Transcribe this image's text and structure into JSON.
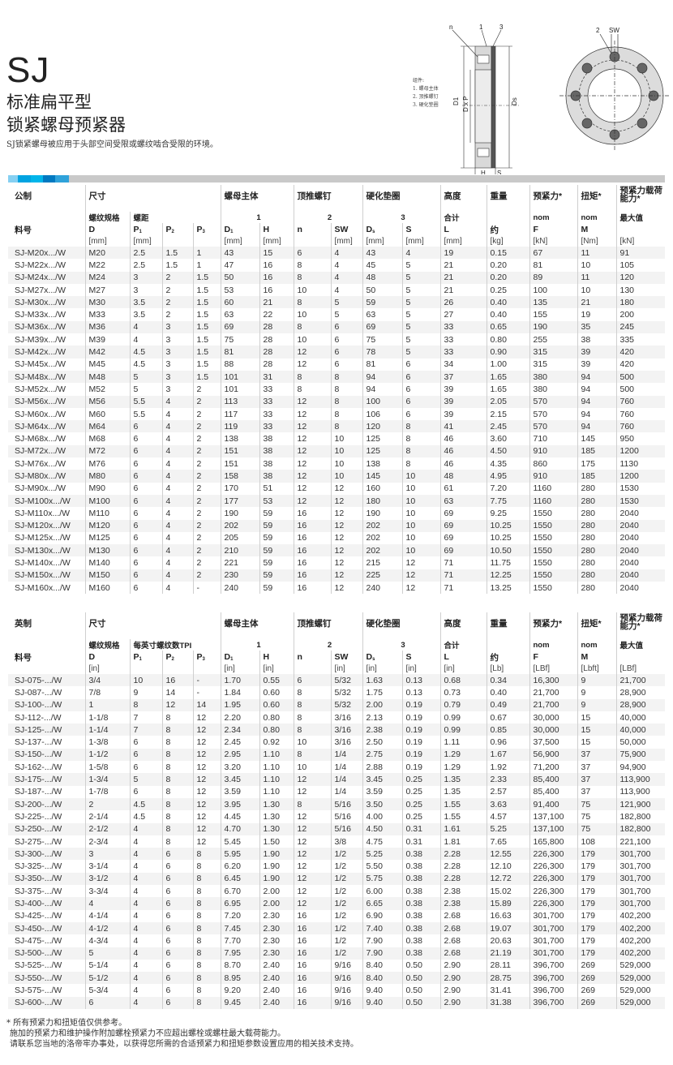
{
  "header": {
    "title": "SJ",
    "subtitle1": "标准扁平型",
    "subtitle2": "锁紧螺母预紧器",
    "description": "SJ锁紧螺母被应用于头部空间受限或螺纹啮合受限的环境。"
  },
  "diagram": {
    "legend_title": "组件:",
    "legend_items": [
      "1. 螺母主体",
      "2. 顶推螺钉",
      "3. 硬化垫圈"
    ],
    "labels": {
      "n": "n",
      "one": "1",
      "three": "3",
      "two": "2",
      "sw": "SW",
      "d1": "D1",
      "dxp": "D x P",
      "ds": "Ds",
      "h": "H",
      "s": "S",
      "l": "L"
    }
  },
  "colors": {
    "bar_segments": [
      "#86d0f2",
      "#00a3e1",
      "#00b5ea",
      "#0079c1",
      "#2fa2da"
    ],
    "bar_rest": "#c9c9c9",
    "row_alt": "#f3f3f3"
  },
  "metric": {
    "h1": [
      "公制",
      "尺寸",
      "螺母主体",
      "顶推螺钉",
      "硬化垫圈",
      "高度",
      "重量",
      "预紧力*",
      "扭矩*",
      "预紧力载荷能力*"
    ],
    "h2": [
      "螺纹规格",
      "螺距",
      "1",
      "2",
      "3",
      "合计",
      "nom",
      "nom",
      "最大值"
    ],
    "h3": [
      "料号",
      "D",
      "P|1",
      "P|2",
      "P|3",
      "D|1",
      "H",
      "n",
      "SW",
      "D|s",
      "S",
      "L",
      "约",
      "F",
      "M",
      ""
    ],
    "h4": [
      "",
      "[mm]",
      "[mm]",
      "",
      "",
      "[mm]",
      "[mm]",
      "",
      "[mm]",
      "[mm]",
      "[mm]",
      "[mm]",
      "[kg]",
      "[kN]",
      "[Nm]",
      "[kN]"
    ],
    "rows": [
      [
        "SJ-M20x.../W",
        "M20",
        "2.5",
        "1.5",
        "1",
        "43",
        "15",
        "6",
        "4",
        "43",
        "4",
        "19",
        "0.15",
        "67",
        "11",
        "91"
      ],
      [
        "SJ-M22x.../W",
        "M22",
        "2.5",
        "1.5",
        "1",
        "47",
        "16",
        "8",
        "4",
        "45",
        "5",
        "21",
        "0.20",
        "81",
        "10",
        "105"
      ],
      [
        "SJ-M24x.../W",
        "M24",
        "3",
        "2",
        "1.5",
        "50",
        "16",
        "8",
        "4",
        "48",
        "5",
        "21",
        "0.20",
        "89",
        "11",
        "120"
      ],
      [
        "SJ-M27x.../W",
        "M27",
        "3",
        "2",
        "1.5",
        "53",
        "16",
        "10",
        "4",
        "50",
        "5",
        "21",
        "0.25",
        "100",
        "10",
        "130"
      ],
      [
        "SJ-M30x.../W",
        "M30",
        "3.5",
        "2",
        "1.5",
        "60",
        "21",
        "8",
        "5",
        "59",
        "5",
        "26",
        "0.40",
        "135",
        "21",
        "180"
      ],
      [
        "SJ-M33x.../W",
        "M33",
        "3.5",
        "2",
        "1.5",
        "63",
        "22",
        "10",
        "5",
        "63",
        "5",
        "27",
        "0.40",
        "155",
        "19",
        "200"
      ],
      [
        "SJ-M36x.../W",
        "M36",
        "4",
        "3",
        "1.5",
        "69",
        "28",
        "8",
        "6",
        "69",
        "5",
        "33",
        "0.65",
        "190",
        "35",
        "245"
      ],
      [
        "SJ-M39x.../W",
        "M39",
        "4",
        "3",
        "1.5",
        "75",
        "28",
        "10",
        "6",
        "75",
        "5",
        "33",
        "0.80",
        "255",
        "38",
        "335"
      ],
      [
        "SJ-M42x.../W",
        "M42",
        "4.5",
        "3",
        "1.5",
        "81",
        "28",
        "12",
        "6",
        "78",
        "5",
        "33",
        "0.90",
        "315",
        "39",
        "420"
      ],
      [
        "SJ-M45x.../W",
        "M45",
        "4.5",
        "3",
        "1.5",
        "88",
        "28",
        "12",
        "6",
        "81",
        "6",
        "34",
        "1.00",
        "315",
        "39",
        "420"
      ],
      [
        "SJ-M48x.../W",
        "M48",
        "5",
        "3",
        "1.5",
        "101",
        "31",
        "8",
        "8",
        "94",
        "6",
        "37",
        "1.65",
        "380",
        "94",
        "500"
      ],
      [
        "SJ-M52x.../W",
        "M52",
        "5",
        "3",
        "2",
        "101",
        "33",
        "8",
        "8",
        "94",
        "6",
        "39",
        "1.65",
        "380",
        "94",
        "500"
      ],
      [
        "SJ-M56x.../W",
        "M56",
        "5.5",
        "4",
        "2",
        "113",
        "33",
        "12",
        "8",
        "100",
        "6",
        "39",
        "2.05",
        "570",
        "94",
        "760"
      ],
      [
        "SJ-M60x.../W",
        "M60",
        "5.5",
        "4",
        "2",
        "117",
        "33",
        "12",
        "8",
        "106",
        "6",
        "39",
        "2.15",
        "570",
        "94",
        "760"
      ],
      [
        "SJ-M64x.../W",
        "M64",
        "6",
        "4",
        "2",
        "119",
        "33",
        "12",
        "8",
        "120",
        "8",
        "41",
        "2.45",
        "570",
        "94",
        "760"
      ],
      [
        "SJ-M68x.../W",
        "M68",
        "6",
        "4",
        "2",
        "138",
        "38",
        "12",
        "10",
        "125",
        "8",
        "46",
        "3.60",
        "710",
        "145",
        "950"
      ],
      [
        "SJ-M72x.../W",
        "M72",
        "6",
        "4",
        "2",
        "151",
        "38",
        "12",
        "10",
        "125",
        "8",
        "46",
        "4.50",
        "910",
        "185",
        "1200"
      ],
      [
        "SJ-M76x.../W",
        "M76",
        "6",
        "4",
        "2",
        "151",
        "38",
        "12",
        "10",
        "138",
        "8",
        "46",
        "4.35",
        "860",
        "175",
        "1130"
      ],
      [
        "SJ-M80x.../W",
        "M80",
        "6",
        "4",
        "2",
        "158",
        "38",
        "12",
        "10",
        "145",
        "10",
        "48",
        "4.95",
        "910",
        "185",
        "1200"
      ],
      [
        "SJ-M90x.../W",
        "M90",
        "6",
        "4",
        "2",
        "170",
        "51",
        "12",
        "12",
        "160",
        "10",
        "61",
        "7.20",
        "1160",
        "280",
        "1530"
      ],
      [
        "SJ-M100x.../W",
        "M100",
        "6",
        "4",
        "2",
        "177",
        "53",
        "12",
        "12",
        "180",
        "10",
        "63",
        "7.75",
        "1160",
        "280",
        "1530"
      ],
      [
        "SJ-M110x.../W",
        "M110",
        "6",
        "4",
        "2",
        "190",
        "59",
        "16",
        "12",
        "190",
        "10",
        "69",
        "9.25",
        "1550",
        "280",
        "2040"
      ],
      [
        "SJ-M120x.../W",
        "M120",
        "6",
        "4",
        "2",
        "202",
        "59",
        "16",
        "12",
        "202",
        "10",
        "69",
        "10.25",
        "1550",
        "280",
        "2040"
      ],
      [
        "SJ-M125x.../W",
        "M125",
        "6",
        "4",
        "2",
        "205",
        "59",
        "16",
        "12",
        "202",
        "10",
        "69",
        "10.25",
        "1550",
        "280",
        "2040"
      ],
      [
        "SJ-M130x.../W",
        "M130",
        "6",
        "4",
        "2",
        "210",
        "59",
        "16",
        "12",
        "202",
        "10",
        "69",
        "10.50",
        "1550",
        "280",
        "2040"
      ],
      [
        "SJ-M140x.../W",
        "M140",
        "6",
        "4",
        "2",
        "221",
        "59",
        "16",
        "12",
        "215",
        "12",
        "71",
        "11.75",
        "1550",
        "280",
        "2040"
      ],
      [
        "SJ-M150x.../W",
        "M150",
        "6",
        "4",
        "2",
        "230",
        "59",
        "16",
        "12",
        "225",
        "12",
        "71",
        "12.25",
        "1550",
        "280",
        "2040"
      ],
      [
        "SJ-M160x.../W",
        "M160",
        "6",
        "4",
        "-",
        "240",
        "59",
        "16",
        "12",
        "240",
        "12",
        "71",
        "13.25",
        "1550",
        "280",
        "2040"
      ]
    ]
  },
  "imperial": {
    "h1": [
      "英制",
      "尺寸",
      "螺母主体",
      "顶推螺钉",
      "硬化垫圈",
      "高度",
      "重量",
      "预紧力*",
      "扭矩*",
      "预紧力载荷能力*"
    ],
    "h2": [
      "螺纹规格",
      "每英寸螺纹数TPI",
      "1",
      "2",
      "3",
      "合计",
      "nom",
      "nom",
      "最大值"
    ],
    "h3": [
      "料号",
      "D",
      "P|1",
      "P|2",
      "P|3",
      "D|1",
      "H",
      "n",
      "SW",
      "D|s",
      "S",
      "L",
      "约",
      "F",
      "M",
      ""
    ],
    "h4": [
      "",
      "[in]",
      "",
      "",
      "",
      "[in]",
      "[in]",
      "",
      "[in]",
      "[in]",
      "[in]",
      "[in]",
      "[Lb]",
      "[LBf]",
      "[Lbft]",
      "[LBf]"
    ],
    "rows": [
      [
        "SJ-075-.../W",
        "3/4",
        "10",
        "16",
        "-",
        "1.70",
        "0.55",
        "6",
        "5/32",
        "1.63",
        "0.13",
        "0.68",
        "0.34",
        "16,300",
        "9",
        "21,700"
      ],
      [
        "SJ-087-.../W",
        "7/8",
        "9",
        "14",
        "-",
        "1.84",
        "0.60",
        "8",
        "5/32",
        "1.75",
        "0.13",
        "0.73",
        "0.40",
        "21,700",
        "9",
        "28,900"
      ],
      [
        "SJ-100-.../W",
        "1",
        "8",
        "12",
        "14",
        "1.95",
        "0.60",
        "8",
        "5/32",
        "2.00",
        "0.19",
        "0.79",
        "0.49",
        "21,700",
        "9",
        "28,900"
      ],
      [
        "SJ-112-.../W",
        "1-1/8",
        "7",
        "8",
        "12",
        "2.20",
        "0.80",
        "8",
        "3/16",
        "2.13",
        "0.19",
        "0.99",
        "0.67",
        "30,000",
        "15",
        "40,000"
      ],
      [
        "SJ-125-.../W",
        "1-1/4",
        "7",
        "8",
        "12",
        "2.34",
        "0.80",
        "8",
        "3/16",
        "2.38",
        "0.19",
        "0.99",
        "0.85",
        "30,000",
        "15",
        "40,000"
      ],
      [
        "SJ-137-.../W",
        "1-3/8",
        "6",
        "8",
        "12",
        "2.45",
        "0.92",
        "10",
        "3/16",
        "2.50",
        "0.19",
        "1.11",
        "0.96",
        "37,500",
        "15",
        "50,000"
      ],
      [
        "SJ-150-.../W",
        "1-1/2",
        "6",
        "8",
        "12",
        "2.95",
        "1.10",
        "8",
        "1/4",
        "2.75",
        "0.19",
        "1.29",
        "1.67",
        "56,900",
        "37",
        "75,900"
      ],
      [
        "SJ-162-.../W",
        "1-5/8",
        "6",
        "8",
        "12",
        "3.20",
        "1.10",
        "10",
        "1/4",
        "2.88",
        "0.19",
        "1.29",
        "1.92",
        "71,200",
        "37",
        "94,900"
      ],
      [
        "SJ-175-.../W",
        "1-3/4",
        "5",
        "8",
        "12",
        "3.45",
        "1.10",
        "12",
        "1/4",
        "3.45",
        "0.25",
        "1.35",
        "2.33",
        "85,400",
        "37",
        "113,900"
      ],
      [
        "SJ-187-.../W",
        "1-7/8",
        "6",
        "8",
        "12",
        "3.59",
        "1.10",
        "12",
        "1/4",
        "3.59",
        "0.25",
        "1.35",
        "2.57",
        "85,400",
        "37",
        "113,900"
      ],
      [
        "SJ-200-.../W",
        "2",
        "4.5",
        "8",
        "12",
        "3.95",
        "1.30",
        "8",
        "5/16",
        "3.50",
        "0.25",
        "1.55",
        "3.63",
        "91,400",
        "75",
        "121,900"
      ],
      [
        "SJ-225-.../W",
        "2-1/4",
        "4.5",
        "8",
        "12",
        "4.45",
        "1.30",
        "12",
        "5/16",
        "4.00",
        "0.25",
        "1.55",
        "4.57",
        "137,100",
        "75",
        "182,800"
      ],
      [
        "SJ-250-.../W",
        "2-1/2",
        "4",
        "8",
        "12",
        "4.70",
        "1.30",
        "12",
        "5/16",
        "4.50",
        "0.31",
        "1.61",
        "5.25",
        "137,100",
        "75",
        "182,800"
      ],
      [
        "SJ-275-.../W",
        "2-3/4",
        "4",
        "8",
        "12",
        "5.45",
        "1.50",
        "12",
        "3/8",
        "4.75",
        "0.31",
        "1.81",
        "7.65",
        "165,800",
        "108",
        "221,100"
      ],
      [
        "SJ-300-.../W",
        "3",
        "4",
        "6",
        "8",
        "5.95",
        "1.90",
        "12",
        "1/2",
        "5.25",
        "0.38",
        "2.28",
        "12.55",
        "226,300",
        "179",
        "301,700"
      ],
      [
        "SJ-325-.../W",
        "3-1/4",
        "4",
        "6",
        "8",
        "6.20",
        "1.90",
        "12",
        "1/2",
        "5.50",
        "0.38",
        "2.28",
        "12.10",
        "226,300",
        "179",
        "301,700"
      ],
      [
        "SJ-350-.../W",
        "3-1/2",
        "4",
        "6",
        "8",
        "6.45",
        "1.90",
        "12",
        "1/2",
        "5.75",
        "0.38",
        "2.28",
        "12.72",
        "226,300",
        "179",
        "301,700"
      ],
      [
        "SJ-375-.../W",
        "3-3/4",
        "4",
        "6",
        "8",
        "6.70",
        "2.00",
        "12",
        "1/2",
        "6.00",
        "0.38",
        "2.38",
        "15.02",
        "226,300",
        "179",
        "301,700"
      ],
      [
        "SJ-400-.../W",
        "4",
        "4",
        "6",
        "8",
        "6.95",
        "2.00",
        "12",
        "1/2",
        "6.65",
        "0.38",
        "2.38",
        "15.89",
        "226,300",
        "179",
        "301,700"
      ],
      [
        "SJ-425-.../W",
        "4-1/4",
        "4",
        "6",
        "8",
        "7.20",
        "2.30",
        "16",
        "1/2",
        "6.90",
        "0.38",
        "2.68",
        "16.63",
        "301,700",
        "179",
        "402,200"
      ],
      [
        "SJ-450-.../W",
        "4-1/2",
        "4",
        "6",
        "8",
        "7.45",
        "2.30",
        "16",
        "1/2",
        "7.40",
        "0.38",
        "2.68",
        "19.07",
        "301,700",
        "179",
        "402,200"
      ],
      [
        "SJ-475-.../W",
        "4-3/4",
        "4",
        "6",
        "8",
        "7.70",
        "2.30",
        "16",
        "1/2",
        "7.90",
        "0.38",
        "2.68",
        "20.63",
        "301,700",
        "179",
        "402,200"
      ],
      [
        "SJ-500-.../W",
        "5",
        "4",
        "6",
        "8",
        "7.95",
        "2.30",
        "16",
        "1/2",
        "7.90",
        "0.38",
        "2.68",
        "21.19",
        "301,700",
        "179",
        "402,200"
      ],
      [
        "SJ-525-.../W",
        "5-1/4",
        "4",
        "6",
        "8",
        "8.70",
        "2.40",
        "16",
        "9/16",
        "8.40",
        "0.50",
        "2.90",
        "28.11",
        "396,700",
        "269",
        "529,000"
      ],
      [
        "SJ-550-.../W",
        "5-1/2",
        "4",
        "6",
        "8",
        "8.95",
        "2.40",
        "16",
        "9/16",
        "8.40",
        "0.50",
        "2.90",
        "28.75",
        "396,700",
        "269",
        "529,000"
      ],
      [
        "SJ-575-.../W",
        "5-3/4",
        "4",
        "6",
        "8",
        "9.20",
        "2.40",
        "16",
        "9/16",
        "9.40",
        "0.50",
        "2.90",
        "31.41",
        "396,700",
        "269",
        "529,000"
      ],
      [
        "SJ-600-.../W",
        "6",
        "4",
        "6",
        "8",
        "9.45",
        "2.40",
        "16",
        "9/16",
        "9.40",
        "0.50",
        "2.90",
        "31.38",
        "396,700",
        "269",
        "529,000"
      ]
    ]
  },
  "notes": [
    "* 所有预紧力和扭矩值仅供参考。",
    "施加的预紧力和维护操作附加螺栓预紧力不应超出螺栓或螺柱最大载荷能力。",
    "请联系您当地的洛帝牢办事处，以获得您所需的合适预紧力和扭矩参数设置应用的相关技术支持。"
  ]
}
